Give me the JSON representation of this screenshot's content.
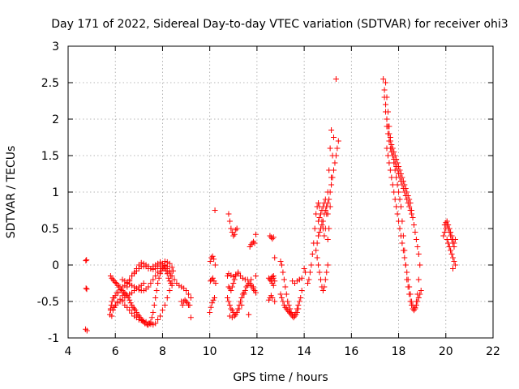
{
  "chart_data": {
    "type": "scatter",
    "title": "Day 171 of 2022, Sidereal Day-to-day VTEC variation (SDTVAR) for receiver ohi3",
    "xlabel": "GPS time / hours",
    "ylabel": "SDTVAR / TECUs",
    "xlim": [
      4,
      22
    ],
    "ylim": [
      -1,
      3
    ],
    "xticks": [
      "4",
      "6",
      "8",
      "10",
      "12",
      "14",
      "16",
      "18",
      "20",
      "22"
    ],
    "yticks": [
      "-1",
      "-0.5",
      "0",
      "0.5",
      "1",
      "1.5",
      "2",
      "2.5",
      "3"
    ],
    "grid": true,
    "marker": "+",
    "color": "#ff0000",
    "series": [
      {
        "name": "SDTVAR",
        "x": [
          4.75,
          4.78,
          4.76,
          4.79,
          4.74,
          4.8,
          5.77,
          5.8,
          5.83,
          5.86,
          5.9,
          5.95,
          6.0,
          6.06,
          6.12,
          6.2,
          6.3,
          6.4,
          6.5,
          6.6,
          6.7,
          6.8,
          6.9,
          7.0,
          7.1,
          7.2,
          7.3,
          7.4,
          7.5,
          7.6,
          7.7,
          7.8,
          7.9,
          8.0,
          8.1,
          8.2,
          8.3,
          8.4,
          8.45,
          5.85,
          5.9,
          5.96,
          6.02,
          6.1,
          6.2,
          6.3,
          6.4,
          6.5,
          6.6,
          6.7,
          6.8,
          6.9,
          7.0,
          7.1,
          7.2,
          7.3,
          7.4,
          7.5,
          7.6,
          7.7,
          7.8,
          7.9,
          8.0,
          8.1,
          8.2,
          8.3,
          8.35,
          5.8,
          5.85,
          5.9,
          5.95,
          6.0,
          6.05,
          6.1,
          6.15,
          6.2,
          6.25,
          6.3,
          6.35,
          6.4,
          6.45,
          6.5,
          6.55,
          6.6,
          6.65,
          6.7,
          6.75,
          6.8,
          6.85,
          6.9,
          6.95,
          7.0,
          7.05,
          7.1,
          7.15,
          7.2,
          7.25,
          7.3,
          7.35,
          7.4,
          7.45,
          7.5,
          7.55,
          7.6,
          7.65,
          7.7,
          7.75,
          7.8,
          7.85,
          7.9,
          7.95,
          8.0,
          8.05,
          8.1,
          8.15,
          8.2,
          8.25,
          8.3,
          8.35,
          8.4,
          6.3,
          6.4,
          6.5,
          6.6,
          6.7,
          6.8,
          6.9,
          7.0,
          7.1,
          7.2,
          7.3,
          7.4,
          7.5,
          7.6,
          7.7,
          7.8,
          7.9,
          8.0,
          8.1,
          8.2,
          8.3,
          8.4,
          5.8,
          5.9,
          6.0,
          6.1,
          6.2,
          6.3,
          6.4,
          6.5,
          6.6,
          6.7,
          6.8,
          6.9,
          7.0,
          7.1,
          7.2,
          6.3,
          6.4,
          6.5,
          6.6,
          6.7,
          6.8,
          6.9,
          7.0,
          7.1,
          7.2,
          7.3,
          7.4,
          7.5,
          7.6,
          7.7,
          7.8,
          7.9,
          8.0,
          8.1,
          8.2,
          8.3,
          8.4,
          8.5,
          8.6,
          8.7,
          8.8,
          8.9,
          9.0,
          9.1,
          9.2,
          8.8,
          8.85,
          8.9,
          8.95,
          9.0,
          9.05,
          9.1,
          9.15,
          9.2,
          10.0,
          10.05,
          10.1,
          10.15,
          10.2,
          10.25,
          10.03,
          10.08,
          10.13,
          10.18,
          10.23,
          10.02,
          10.07,
          10.12,
          10.17,
          10.22,
          10.8,
          10.85,
          10.9,
          10.95,
          11.0,
          11.05,
          11.1,
          11.15,
          11.2,
          11.1,
          11.05,
          11.0,
          10.95,
          10.9,
          10.85,
          10.8,
          10.75,
          10.8,
          10.9,
          11.0,
          11.1,
          11.2,
          11.3,
          11.4,
          11.5,
          11.6,
          11.65,
          10.85,
          10.95,
          11.05,
          11.15,
          11.25,
          11.35,
          11.45,
          10.75,
          10.8,
          10.85,
          10.9,
          10.95,
          11.0,
          11.05,
          11.1,
          11.15,
          11.2,
          11.25,
          11.3,
          11.35,
          11.4,
          11.45,
          11.5,
          11.55,
          11.6,
          11.65,
          11.7,
          11.75,
          11.8,
          11.85,
          11.9,
          11.95,
          11.7,
          11.75,
          11.8,
          11.85,
          11.9,
          11.95,
          11.75,
          11.85,
          11.95,
          12.55,
          12.6,
          12.65,
          12.7,
          12.75,
          12.55,
          12.6,
          12.65,
          12.7,
          12.75,
          12.5,
          12.55,
          12.6,
          12.65,
          12.7,
          12.5,
          12.55,
          12.6,
          12.65,
          12.7,
          12.75,
          13.0,
          13.05,
          13.1,
          13.15,
          13.2,
          13.25,
          13.3,
          13.35,
          13.4,
          13.45,
          13.5,
          13.55,
          13.6,
          13.65,
          13.7,
          13.75,
          13.8,
          13.85,
          13.9,
          13.0,
          13.05,
          13.1,
          13.15,
          13.2,
          13.25,
          13.3,
          13.35,
          13.4,
          13.45,
          13.5,
          13.55,
          13.6,
          13.65,
          13.7,
          13.75,
          13.8,
          13.5,
          13.6,
          13.7,
          13.8,
          13.9,
          14.0,
          14.05,
          14.15,
          14.2,
          14.25,
          14.3,
          14.35,
          14.4,
          14.45,
          14.5,
          14.55,
          14.6,
          14.65,
          14.7,
          14.75,
          14.8,
          14.85,
          14.9,
          14.95,
          15.0,
          15.05,
          15.1,
          15.15,
          15.0,
          15.05,
          15.1,
          15.15,
          15.2,
          15.25,
          15.35,
          14.6,
          14.65,
          14.7,
          14.75,
          14.8,
          14.85,
          14.9,
          14.95,
          15.0,
          14.55,
          14.6,
          14.65,
          14.7,
          14.75,
          14.8,
          14.85,
          14.9,
          14.95,
          15.0,
          14.5,
          14.55,
          14.6,
          14.65,
          14.7,
          14.75,
          14.8,
          14.85,
          14.9,
          14.95,
          15.0,
          15.05,
          15.1,
          15.15,
          15.2,
          15.25,
          15.3,
          15.35,
          15.4,
          15.45,
          17.35,
          17.4,
          17.45,
          17.5,
          17.55,
          17.6,
          17.65,
          17.7,
          17.75,
          17.8,
          17.85,
          17.9,
          17.95,
          18.0,
          18.05,
          18.1,
          18.15,
          18.2,
          18.25,
          18.3,
          18.35,
          18.4,
          18.45,
          18.5,
          18.55,
          18.6,
          18.65,
          18.7,
          18.75,
          18.8,
          18.85,
          18.9,
          18.95,
          17.4,
          17.45,
          17.5,
          17.55,
          17.6,
          17.65,
          17.7,
          17.75,
          17.8,
          17.85,
          17.9,
          17.95,
          18.0,
          18.05,
          18.1,
          18.15,
          18.2,
          18.25,
          18.3,
          18.35,
          18.4,
          18.45,
          18.5,
          18.55,
          18.6,
          17.45,
          17.5,
          17.55,
          17.6,
          17.65,
          17.7,
          17.75,
          17.8,
          17.85,
          17.9,
          17.95,
          18.0,
          18.05,
          18.1,
          18.15,
          18.2,
          18.25,
          18.3,
          18.35,
          18.4,
          18.45,
          18.5,
          18.55,
          18.6,
          18.65,
          18.7,
          18.75,
          18.8,
          18.85,
          17.5,
          17.55,
          17.6,
          17.65,
          17.7,
          17.75,
          17.8,
          17.85,
          17.9,
          17.95,
          18.0,
          18.05,
          18.1,
          18.15,
          18.2,
          18.25,
          18.3,
          18.35,
          18.4,
          18.45,
          18.5,
          18.55,
          18.6,
          18.65,
          18.7,
          18.75,
          18.8,
          18.85,
          18.9,
          19.95,
          20.0,
          20.05,
          20.1,
          20.15,
          20.2,
          20.25,
          20.3,
          20.35,
          20.4,
          19.9,
          19.95,
          20.0,
          20.05,
          20.1,
          20.15,
          20.2,
          20.25,
          20.3,
          20.35,
          20.1,
          20.15,
          20.2,
          20.25,
          20.3,
          20.35,
          20.4,
          20.05,
          20.1,
          20.15,
          20.2,
          20.25,
          20.3
        ],
        "y": [
          0.06,
          0.07,
          -0.32,
          -0.33,
          -0.88,
          -0.9,
          -0.68,
          -0.6,
          -0.55,
          -0.5,
          -0.45,
          -0.45,
          -0.42,
          -0.38,
          -0.38,
          -0.34,
          -0.3,
          -0.28,
          -0.25,
          -0.2,
          -0.15,
          -0.12,
          -0.08,
          -0.05,
          -0.02,
          -0.02,
          0.0,
          -0.02,
          -0.05,
          -0.06,
          -0.05,
          -0.02,
          0.0,
          0.02,
          0.05,
          0.04,
          0.02,
          -0.03,
          -0.08,
          -0.7,
          -0.62,
          -0.58,
          -0.55,
          -0.5,
          -0.47,
          -0.42,
          -0.38,
          -0.3,
          -0.22,
          -0.15,
          -0.1,
          -0.05,
          0.0,
          0.03,
          0.02,
          -0.02,
          -0.05,
          -0.05,
          -0.02,
          0.0,
          0.02,
          0.04,
          0.02,
          -0.01,
          -0.05,
          -0.1,
          -0.15,
          -0.15,
          -0.18,
          -0.2,
          -0.22,
          -0.24,
          -0.25,
          -0.28,
          -0.3,
          -0.3,
          -0.33,
          -0.35,
          -0.38,
          -0.4,
          -0.4,
          -0.42,
          -0.45,
          -0.48,
          -0.52,
          -0.55,
          -0.58,
          -0.6,
          -0.62,
          -0.65,
          -0.68,
          -0.7,
          -0.72,
          -0.75,
          -0.76,
          -0.78,
          -0.8,
          -0.8,
          -0.82,
          -0.82,
          -0.8,
          -0.78,
          -0.72,
          -0.65,
          -0.55,
          -0.45,
          -0.35,
          -0.25,
          -0.18,
          -0.12,
          -0.08,
          -0.05,
          -0.04,
          -0.05,
          -0.08,
          -0.12,
          -0.18,
          -0.22,
          -0.25,
          -0.25,
          -0.5,
          -0.55,
          -0.58,
          -0.62,
          -0.66,
          -0.7,
          -0.72,
          -0.75,
          -0.76,
          -0.77,
          -0.78,
          -0.8,
          -0.81,
          -0.82,
          -0.8,
          -0.75,
          -0.7,
          -0.62,
          -0.55,
          -0.45,
          -0.35,
          -0.28,
          -0.62,
          -0.58,
          -0.55,
          -0.52,
          -0.5,
          -0.48,
          -0.45,
          -0.42,
          -0.4,
          -0.38,
          -0.35,
          -0.32,
          -0.3,
          -0.28,
          -0.25,
          -0.2,
          -0.22,
          -0.24,
          -0.26,
          -0.28,
          -0.3,
          -0.32,
          -0.34,
          -0.35,
          -0.35,
          -0.33,
          -0.3,
          -0.25,
          -0.2,
          -0.15,
          -0.1,
          -0.05,
          -0.02,
          0.0,
          -0.02,
          -0.08,
          -0.15,
          -0.2,
          -0.25,
          -0.28,
          -0.3,
          -0.32,
          -0.35,
          -0.4,
          -0.45,
          -0.5,
          -0.55,
          -0.5,
          -0.48,
          -0.5,
          -0.52,
          -0.55,
          -0.55,
          -0.72,
          -0.65,
          -0.58,
          -0.52,
          -0.48,
          -0.45,
          -0.25,
          -0.22,
          -0.2,
          -0.18,
          -0.22,
          0.0,
          0.05,
          0.1,
          0.12,
          0.08,
          0.75,
          0.7,
          0.6,
          0.5,
          0.45,
          0.4,
          0.42,
          0.48,
          0.5,
          -0.1,
          -0.15,
          -0.2,
          -0.25,
          -0.3,
          -0.35,
          -0.32,
          -0.3,
          -0.15,
          -0.12,
          -0.14,
          -0.16,
          -0.13,
          -0.12,
          -0.15,
          -0.18,
          -0.2,
          -0.2,
          -0.68,
          -0.7,
          -0.72,
          -0.7,
          -0.65,
          -0.6,
          -0.55,
          -0.4,
          -0.45,
          -0.5,
          -0.55,
          -0.6,
          -0.62,
          -0.65,
          -0.68,
          -0.68,
          -0.65,
          -0.6,
          -0.55,
          -0.5,
          -0.45,
          -0.4,
          -0.38,
          -0.35,
          -0.3,
          -0.28,
          -0.25,
          -0.25,
          -0.28,
          -0.3,
          -0.33,
          -0.35,
          -0.38,
          0.25,
          0.28,
          0.3,
          0.32,
          0.3,
          -0.15,
          -0.2,
          -0.3,
          0.42,
          0.4,
          0.38,
          0.36,
          0.38,
          -0.22,
          -0.2,
          -0.18,
          -0.16,
          -0.18,
          -0.5,
          -0.48,
          -0.45,
          -0.42,
          -0.45,
          -0.15,
          -0.18,
          -0.2,
          -0.22,
          -0.25,
          -0.28,
          0.1,
          0.05,
          0.0,
          -0.1,
          -0.2,
          -0.3,
          -0.4,
          -0.5,
          -0.55,
          -0.6,
          -0.65,
          -0.68,
          -0.7,
          -0.68,
          -0.65,
          -0.6,
          -0.55,
          -0.5,
          -0.45,
          -0.35,
          -0.4,
          -0.45,
          -0.5,
          -0.55,
          -0.58,
          -0.6,
          -0.62,
          -0.64,
          -0.66,
          -0.68,
          -0.7,
          -0.72,
          -0.7,
          -0.68,
          -0.65,
          -0.6,
          -0.2,
          -0.22,
          -0.25,
          -0.22,
          -0.2,
          -0.18,
          -0.05,
          -0.1,
          -0.25,
          -0.2,
          -0.1,
          0.0,
          0.15,
          0.3,
          0.5,
          0.7,
          0.8,
          0.85,
          0.8,
          0.7,
          0.6,
          0.5,
          0.4,
          0.5,
          0.7,
          1.0,
          1.3,
          1.6,
          1.85,
          0.35,
          0.5,
          0.8,
          1.2,
          1.5,
          1.75,
          2.55,
          0.6,
          0.65,
          0.7,
          0.75,
          0.8,
          0.85,
          0.9,
          0.8,
          0.7,
          0.1,
          0.0,
          -0.1,
          -0.2,
          -0.3,
          -0.35,
          -0.3,
          -0.2,
          -0.1,
          0.0,
          0.2,
          0.3,
          0.4,
          0.45,
          0.5,
          0.55,
          0.6,
          0.7,
          0.75,
          0.8,
          0.85,
          0.9,
          1.0,
          1.1,
          1.2,
          1.3,
          1.4,
          1.5,
          1.6,
          1.7,
          2.55,
          2.4,
          2.2,
          2.0,
          1.9,
          1.8,
          1.7,
          1.6,
          1.5,
          1.4,
          1.3,
          1.2,
          1.1,
          1.0,
          0.9,
          0.8,
          0.6,
          0.4,
          0.2,
          0.0,
          -0.2,
          -0.3,
          -0.4,
          -0.5,
          -0.55,
          -0.6,
          -0.62,
          -0.6,
          -0.55,
          -0.5,
          -0.45,
          -0.4,
          -0.35,
          2.3,
          2.1,
          1.9,
          1.8,
          1.7,
          1.6,
          1.55,
          1.5,
          1.45,
          1.4,
          1.35,
          1.3,
          1.25,
          1.2,
          1.15,
          1.1,
          1.05,
          1.0,
          0.95,
          0.9,
          0.85,
          0.8,
          0.75,
          0.7,
          0.65,
          2.5,
          2.3,
          2.1,
          1.9,
          1.75,
          1.65,
          1.6,
          1.55,
          1.5,
          1.45,
          1.4,
          1.35,
          1.3,
          1.25,
          1.2,
          1.15,
          1.1,
          1.05,
          1.0,
          0.95,
          0.9,
          0.85,
          0.75,
          0.65,
          0.55,
          0.45,
          0.35,
          0.25,
          0.15,
          1.6,
          1.5,
          1.4,
          1.3,
          1.2,
          1.1,
          1.0,
          0.9,
          0.8,
          0.7,
          0.6,
          0.5,
          0.4,
          0.3,
          0.2,
          0.1,
          0.0,
          -0.1,
          -0.2,
          -0.3,
          -0.4,
          -0.5,
          -0.55,
          -0.6,
          -0.58,
          -0.5,
          -0.4,
          -0.2,
          0.0,
          0.55,
          0.58,
          0.6,
          0.55,
          0.5,
          0.45,
          0.4,
          0.35,
          0.3,
          0.35,
          0.4,
          0.45,
          0.5,
          0.55,
          0.5,
          0.45,
          0.4,
          0.35,
          0.3,
          0.25,
          0.3,
          0.25,
          0.2,
          0.15,
          0.1,
          0.05,
          0.0,
          0.35,
          0.3,
          0.25,
          0.2,
          0.15,
          -0.05
        ]
      }
    ]
  }
}
